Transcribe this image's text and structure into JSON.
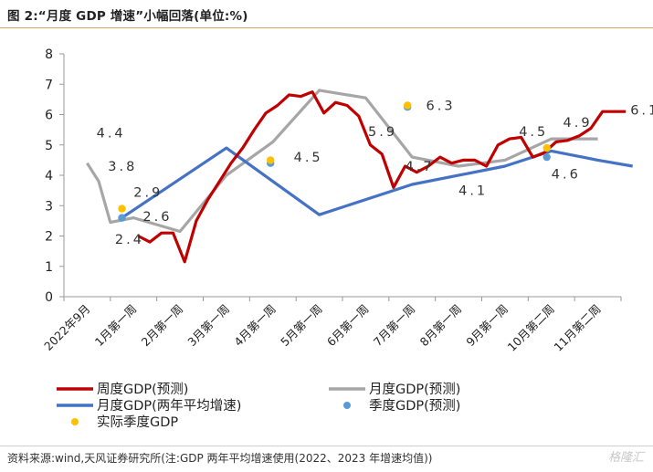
{
  "figure_title": "图 2:“月度 GDP 增速”小幅回落(单位:%)",
  "source_note": "资料来源:wind,天风证券研究所(注:GDP 两年平均增速使用(2022、2023 年增速均值))",
  "watermark": "格隆汇",
  "colors": {
    "weekly": "#c00000",
    "monthly_forecast": "#a6a6a6",
    "monthly_two_year": "#4472c4",
    "quarterly_forecast": "#5b9bd5",
    "actual_quarterly": "#ffc000",
    "title_rule": "#e0a36e"
  },
  "chart_data": {
    "type": "line",
    "title": "",
    "xlabel": "",
    "ylabel": "",
    "ylim": [
      0,
      8
    ],
    "yticks": [
      "0",
      "1",
      "2",
      "3",
      "4",
      "5",
      "6",
      "7",
      "8"
    ],
    "x_categories": [
      "2022年9月",
      "1月第一周",
      "2月第一周",
      "3月第一周",
      "4月第一周",
      "5月第一周",
      "6月第一周",
      "7月第一周",
      "8月第一周",
      "9月第一周",
      "10月第二周",
      "11月第二周"
    ],
    "grid": false,
    "legend_position": "bottom",
    "series": [
      {
        "name": "周度GDP(预测)",
        "key": "weekly",
        "style": "line",
        "x": [
          1.1,
          1.35,
          1.6,
          1.85,
          2.1,
          2.35,
          2.6,
          2.85,
          3.1,
          3.35,
          3.6,
          3.85,
          4.1,
          4.35,
          4.6,
          4.85,
          5.1,
          5.35,
          5.6,
          5.85,
          6.1,
          6.35,
          6.6,
          6.85,
          7.1,
          7.35,
          7.6,
          7.85,
          8.1,
          8.35,
          8.6,
          8.85,
          9.1,
          9.35,
          9.6,
          9.85,
          10.1,
          10.35,
          10.6,
          10.85,
          11.1,
          11.35,
          11.6
        ],
        "y": [
          2.0,
          1.8,
          2.1,
          2.1,
          1.15,
          2.5,
          3.2,
          3.8,
          4.4,
          4.9,
          5.5,
          6.05,
          6.3,
          6.65,
          6.6,
          6.75,
          6.05,
          6.4,
          6.3,
          5.95,
          5.0,
          4.7,
          3.6,
          4.3,
          4.1,
          4.3,
          4.6,
          4.4,
          4.5,
          4.5,
          4.3,
          5.0,
          5.2,
          5.25,
          4.6,
          4.75,
          5.1,
          5.15,
          5.3,
          5.55,
          6.1,
          6.1,
          6.1
        ]
      },
      {
        "name": "月度GDP(预测)",
        "key": "monthly_forecast",
        "style": "line",
        "x": [
          0,
          0.25,
          0.5,
          1.0,
          2.0,
          3.0,
          4.0,
          5.0,
          6.0,
          7.0,
          8.0,
          9.0,
          10.0,
          11.0
        ],
        "y": [
          4.4,
          3.8,
          2.45,
          2.6,
          2.15,
          4.0,
          5.1,
          6.8,
          6.55,
          4.6,
          4.3,
          4.5,
          5.2,
          5.2
        ]
      },
      {
        "name": "月度GDP(两年平均增速)",
        "key": "monthly_two_year",
        "style": "line",
        "x": [
          0.75,
          3.0,
          5.0,
          7.0,
          9.0,
          10.0,
          11.0,
          11.75
        ],
        "y": [
          2.6,
          4.9,
          2.7,
          3.7,
          4.3,
          4.8,
          4.5,
          4.3
        ]
      },
      {
        "name": "季度GDP(预测)",
        "key": "quarterly_forecast",
        "style": "points",
        "x": [
          0.75,
          3.95,
          6.9,
          9.9
        ],
        "y": [
          2.6,
          4.4,
          6.25,
          4.6
        ]
      },
      {
        "name": "实际季度GDP",
        "key": "actual_quarterly",
        "style": "points",
        "x": [
          0.75,
          3.95,
          6.9,
          9.9
        ],
        "y": [
          2.9,
          4.5,
          6.3,
          4.9
        ]
      }
    ],
    "annotations": [
      {
        "text": "4.4",
        "x": 0.2,
        "y": 5.25
      },
      {
        "text": "3.8",
        "x": 0.45,
        "y": 4.15
      },
      {
        "text": "2.9",
        "x": 1.0,
        "y": 3.3
      },
      {
        "text": "2.6",
        "x": 1.2,
        "y": 2.5
      },
      {
        "text": "2.4",
        "x": 0.6,
        "y": 1.75
      },
      {
        "text": "4.5",
        "x": 4.45,
        "y": 4.45
      },
      {
        "text": "5.9",
        "x": 6.05,
        "y": 5.3
      },
      {
        "text": "6.3",
        "x": 7.3,
        "y": 6.15
      },
      {
        "text": "4.7",
        "x": 6.85,
        "y": 4.15
      },
      {
        "text": "4.1",
        "x": 8.0,
        "y": 3.35
      },
      {
        "text": "4.5",
        "x": 9.3,
        "y": 5.3
      },
      {
        "text": "4.9",
        "x": 10.25,
        "y": 5.6
      },
      {
        "text": "4.6",
        "x": 10.0,
        "y": 3.9
      },
      {
        "text": "6.1",
        "x": 11.7,
        "y": 6.0
      }
    ]
  }
}
